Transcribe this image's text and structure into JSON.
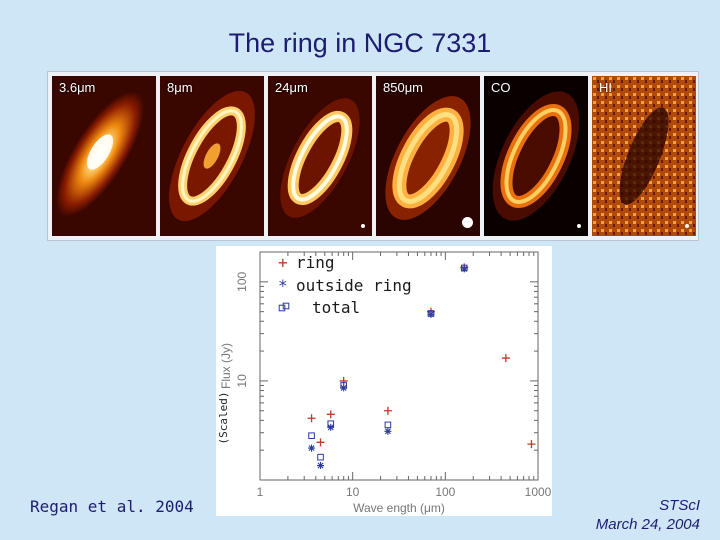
{
  "slide": {
    "title": "The ring in NGC 7331",
    "credit_left": "Regan et al. 2004",
    "credit_right_org": "STScI",
    "credit_right_date": "March 24, 2004"
  },
  "image_panels": [
    {
      "label": "3.6μm"
    },
    {
      "label": "8μm"
    },
    {
      "label": "24μm"
    },
    {
      "label": "850μm"
    },
    {
      "label": "CO"
    },
    {
      "label": "HI"
    }
  ],
  "colors": {
    "background": "#cfe6f7",
    "title_text": "#1c1c70",
    "ring_series": "#c0392b",
    "outside_series": "#2d3a9e",
    "total_series": "#2d3a9e"
  },
  "chart_data": {
    "type": "scatter",
    "title": "",
    "xlabel": "Wave ength (μm)",
    "ylabel": "Flux (Jy)",
    "ylabel_note": "(Scaled)",
    "xscale": "log",
    "yscale": "log",
    "xlim": [
      1,
      1000
    ],
    "ylim": [
      1,
      200
    ],
    "xticks": [
      "1",
      "10",
      "100",
      "1000"
    ],
    "yticks": [
      "10",
      "100"
    ],
    "legend_placement": "top-left",
    "series": [
      {
        "name": "ring",
        "marker": "+",
        "x": [
          3.6,
          4.5,
          5.8,
          8,
          24,
          70,
          160,
          450,
          850
        ],
        "y": [
          4.2,
          2.4,
          4.6,
          10,
          5,
          50,
          140,
          17,
          2.3
        ]
      },
      {
        "name": "outside ring",
        "marker": "*",
        "x": [
          3.6,
          4.5,
          5.8,
          8,
          24,
          70,
          160
        ],
        "y": [
          2.1,
          1.4,
          3.4,
          8.5,
          3.1,
          47,
          135
        ]
      },
      {
        "name": "total",
        "marker": "square",
        "x": [
          3.6,
          4.5,
          5.8,
          8,
          24,
          70,
          160
        ],
        "y": [
          2.8,
          1.7,
          3.7,
          9,
          3.6,
          48,
          138
        ]
      }
    ]
  }
}
